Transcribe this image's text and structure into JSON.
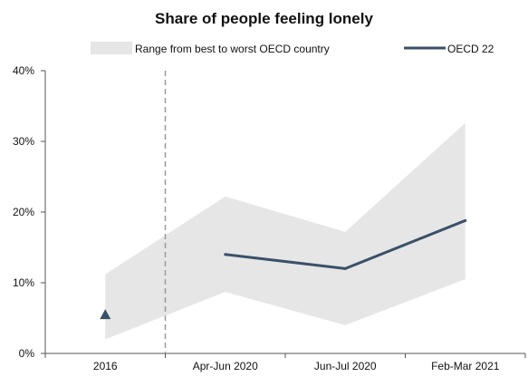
{
  "chart_data": {
    "type": "line",
    "title": "Share of people feeling lonely",
    "categories": [
      "2016",
      "Apr-Jun 2020",
      "Jun-Jul 2020",
      "Feb-Mar 2021"
    ],
    "ylim": [
      0,
      40
    ],
    "yticks": [
      0,
      10,
      20,
      30,
      40
    ],
    "ytick_labels": [
      "0%",
      "10%",
      "20%",
      "30%",
      "40%"
    ],
    "grid": false,
    "legend_placement": "top",
    "series": [
      {
        "name": "Range from best to worst OECD country",
        "kind": "range",
        "color": "#e6e6e6",
        "lower": [
          2,
          8.7,
          4,
          10.5
        ],
        "upper": [
          11.2,
          22.2,
          17.2,
          32.6
        ]
      },
      {
        "name": "OECD 22",
        "kind": "line",
        "color": "#3a5068",
        "values": [
          null,
          14,
          12,
          18.8
        ]
      }
    ],
    "marker_2016": {
      "value": 5.5,
      "shape": "triangle",
      "color": "#3a5068"
    },
    "separator": {
      "between": [
        "2016",
        "Apr-Jun 2020"
      ],
      "style": "dashed",
      "color": "#999999"
    }
  }
}
